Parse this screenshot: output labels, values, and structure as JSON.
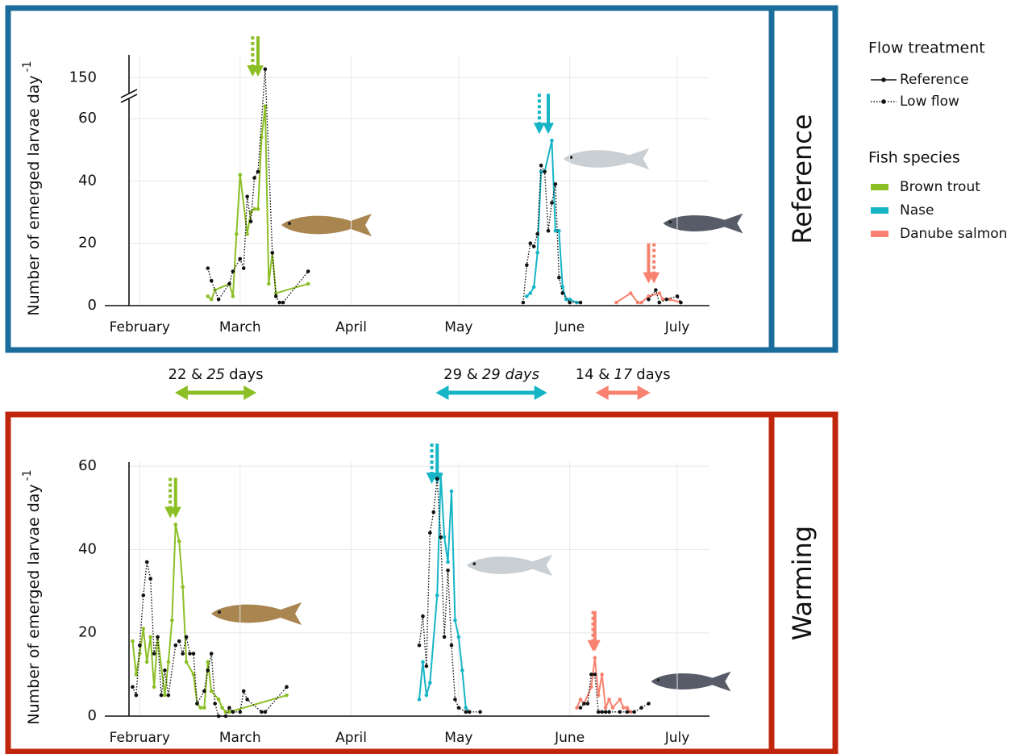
{
  "legend": {
    "flow_title": "Flow treatment",
    "flow": [
      "Reference",
      "Low flow"
    ],
    "species_title": "Fish species",
    "species": [
      {
        "name": "Brown trout",
        "color": "#8cbf26"
      },
      {
        "name": "Nase",
        "color": "#16b5c6"
      },
      {
        "name": "Danube salmon",
        "color": "#f8826f"
      }
    ]
  },
  "durations": [
    {
      "parts": [
        {
          "text": "22 &"
        },
        {
          "text": "25",
          "italic": true
        },
        {
          "text": "days"
        }
      ],
      "from": 41.8,
      "to": 64.6
    },
    {
      "parts": [
        {
          "text": "29 &"
        },
        {
          "text": "29 days",
          "italic": true
        }
      ],
      "from": 114.6,
      "to": 145.7
    },
    {
      "parts": [
        {
          "text": "14 &"
        },
        {
          "text": "17",
          "italic": true
        },
        {
          "text": "days"
        }
      ],
      "from": 159.2,
      "to": 174.5
    }
  ],
  "chart_data": [
    {
      "type": "line",
      "panel_label": "Reference",
      "frame_color": "#1a6d9a",
      "y_label": "Number of emerged larvae day",
      "y_label_exponent": "-1",
      "xlim": [
        29,
        191
      ],
      "xticks": [
        {
          "value": 32,
          "label": "February"
        },
        {
          "value": 60,
          "label": "March"
        },
        {
          "value": 91,
          "label": "April"
        },
        {
          "value": 121,
          "label": "May"
        },
        {
          "value": 152,
          "label": "June"
        },
        {
          "value": 182,
          "label": "July"
        }
      ],
      "ylim": [
        0,
        158
      ],
      "ybreak": [
        66,
        145
      ],
      "yticks": [
        0,
        20,
        40,
        60,
        150
      ],
      "grid": true,
      "series": [
        {
          "reference": {
            "x": [
              51,
              52,
              53,
              57,
              58,
              59,
              60,
              62,
              63,
              64,
              65,
              66,
              67,
              68,
              69,
              70,
              79
            ],
            "values": [
              3,
              2,
              5,
              7,
              3,
              23,
              42,
              23,
              30,
              31,
              31,
              54,
              64,
              7,
              17,
              4,
              7
            ],
            "peak": 65
          },
          "low_flow": {
            "x": [
              51,
              52,
              54,
              57,
              58,
              60,
              61,
              62,
              63,
              64,
              65,
              67,
              69,
              70,
              71,
              72,
              79
            ],
            "values": [
              12,
              8,
              2,
              7,
              11,
              15,
              12,
              35,
              27,
              41,
              43,
              153,
              17,
              3,
              1,
              1,
              11
            ],
            "peak": 63.5
          }
        },
        {
          "reference": {
            "x": [
              140,
              141,
              142,
              143,
              144,
              145,
              147,
              148,
              149,
              150,
              151,
              152,
              154
            ],
            "values": [
              3,
              4,
              6,
              17,
              43,
              43,
              53,
              24,
              24,
              6,
              2,
              2,
              1
            ],
            "peak": 146
          },
          "low_flow": {
            "x": [
              139,
              140,
              141,
              142,
              143,
              144,
              145,
              146,
              147,
              148,
              149,
              150,
              152,
              155
            ],
            "values": [
              1,
              13,
              20,
              19,
              23,
              45,
              43,
              24,
              33,
              39,
              9,
              4,
              1,
              1
            ],
            "peak": 143.5
          }
        },
        {
          "reference": {
            "x": [
              165,
              169,
              171,
              172,
              174,
              177,
              178,
              180,
              183
            ],
            "values": [
              1,
              4,
              1,
              1,
              3,
              4,
              2,
              2,
              1
            ],
            "peak": 174
          },
          "low_flow": {
            "x": [
              174,
              176,
              177,
              179,
              182,
              183
            ],
            "values": [
              2,
              5,
              1,
              2,
              3,
              1
            ],
            "peak": 175.5
          }
        }
      ]
    },
    {
      "type": "line",
      "panel_label": "Warming",
      "frame_color": "#c0260e",
      "y_label": "Number of emerged larvae day",
      "y_label_exponent": "-1",
      "xlim": [
        29,
        191
      ],
      "xticks": [
        {
          "value": 32,
          "label": "February"
        },
        {
          "value": 60,
          "label": "March"
        },
        {
          "value": 91,
          "label": "April"
        },
        {
          "value": 121,
          "label": "May"
        },
        {
          "value": 152,
          "label": "June"
        },
        {
          "value": 182,
          "label": "July"
        }
      ],
      "ylim": [
        0,
        61
      ],
      "yticks": [
        0,
        20,
        40,
        60
      ],
      "grid": true,
      "series": [
        {
          "reference": {
            "x": [
              30,
              31,
              32,
              33,
              34,
              35,
              36,
              37,
              39,
              40,
              41,
              42,
              43,
              44,
              45,
              47,
              48,
              49,
              50,
              51,
              52,
              54,
              55,
              56,
              57,
              73
            ],
            "values": [
              18,
              10,
              15,
              21,
              13,
              19,
              7,
              19,
              5,
              13,
              23,
              46,
              42,
              31,
              13,
              10,
              3,
              2,
              2,
              13,
              6,
              4,
              2,
              1,
              1,
              5
            ],
            "peak": 42
          },
          "low_flow": {
            "x": [
              30,
              31,
              32,
              33,
              34,
              35,
              36,
              37,
              38,
              39,
              40,
              42,
              43,
              44,
              45,
              46,
              47,
              48,
              50,
              51,
              52,
              53,
              54,
              56,
              57,
              58,
              60,
              61,
              62,
              66,
              67,
              73
            ],
            "values": [
              7,
              5,
              17,
              29,
              37,
              33,
              15,
              19,
              5,
              11,
              5,
              17,
              18,
              15,
              19,
              15,
              15,
              3,
              6,
              11,
              15,
              3,
              0,
              0,
              2,
              1,
              1,
              6,
              4,
              1,
              1,
              7
            ],
            "peak": 40.5
          }
        },
        {
          "reference": {
            "x": [
              110,
              111,
              112,
              113,
              115,
              116,
              117,
              118,
              119,
              120,
              121,
              122,
              123,
              124
            ],
            "values": [
              4,
              13,
              5,
              8,
              29,
              58,
              43,
              37,
              54,
              23,
              19,
              11,
              2,
              1
            ],
            "peak": 115
          },
          "low_flow": {
            "x": [
              110,
              111,
              112,
              113,
              114,
              115,
              116,
              117,
              118,
              119,
              120,
              121,
              123,
              124,
              127
            ],
            "values": [
              17,
              24,
              12,
              44,
              49,
              57,
              43,
              19,
              35,
              17,
              4,
              2,
              1,
              1,
              1
            ],
            "peak": 113.5
          }
        },
        {
          "reference": {
            "x": [
              154,
              155,
              156,
              158,
              159,
              160,
              161,
              162,
              163,
              164,
              166,
              167,
              168,
              169
            ],
            "values": [
              2,
              4,
              3,
              7,
              14,
              5,
              10,
              2,
              4,
              2,
              4,
              2,
              2,
              1
            ],
            "peak": 159
          },
          "low_flow": {
            "x": [
              155,
              156,
              157,
              158,
              159,
              160,
              161,
              162,
              163,
              166,
              168,
              170,
              172,
              174
            ],
            "values": [
              2,
              3,
              3,
              10,
              10,
              1,
              1,
              1,
              1,
              1,
              1,
              1,
              2,
              3
            ],
            "peak": 158.5
          }
        }
      ]
    }
  ]
}
